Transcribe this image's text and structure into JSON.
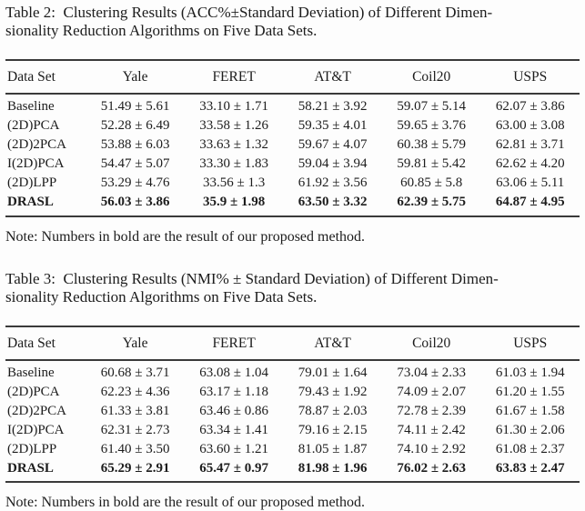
{
  "page": {
    "background": "#fdfdfd",
    "text_color": "#1c1c1c",
    "rule_color": "#3a3a3a"
  },
  "tables": [
    {
      "caption_line1": "Table 2: Clustering Results (ACC%±Standard Deviation) of Different Dimen-",
      "caption_line2": "sionality Reduction Algorithms on Five Data Sets.",
      "columns": [
        "Data Set",
        "Yale",
        "FERET",
        "AT&T",
        "Coil20",
        "USPS"
      ],
      "rows": [
        {
          "label": "Baseline",
          "bold": false,
          "values": [
            "51.49 ± 5.61",
            "33.10 ± 1.71",
            "58.21 ± 3.92",
            "59.07 ± 5.14",
            "62.07 ± 3.86"
          ]
        },
        {
          "label": "(2D)PCA",
          "bold": false,
          "values": [
            "52.28 ± 6.49",
            "33.58 ± 1.26",
            "59.35 ± 4.01",
            "59.65 ± 3.76",
            "63.00 ± 3.08"
          ]
        },
        {
          "label": "(2D)2PCA",
          "bold": false,
          "values": [
            "53.88 ± 6.03",
            "33.63 ± 1.32",
            "59.67 ± 4.07",
            "60.38 ± 5.79",
            "62.81 ± 3.71"
          ]
        },
        {
          "label": "I(2D)PCA",
          "bold": false,
          "values": [
            "54.47 ± 5.07",
            "33.30 ± 1.83",
            "59.04 ± 3.94",
            "59.81 ± 5.42",
            "62.62 ± 4.20"
          ]
        },
        {
          "label": "(2D)LPP",
          "bold": false,
          "values": [
            "53.29 ± 4.76",
            "33.56 ± 1.3",
            "61.92 ± 3.56",
            "60.85 ± 5.8",
            "63.06 ± 5.11"
          ]
        },
        {
          "label": "DRASL",
          "bold": true,
          "values": [
            "56.03 ± 3.86",
            "35.9 ± 1.98",
            "63.50 ± 3.32",
            "62.39 ± 5.75",
            "64.87 ± 4.95"
          ]
        }
      ],
      "note": "Note: Numbers in bold are the result of our proposed method."
    },
    {
      "caption_line1": "Table 3: Clustering Results (NMI% ± Standard Deviation) of Different Dimen-",
      "caption_line2": "sionality Reduction Algorithms on Five Data Sets.",
      "columns": [
        "Data Set",
        "Yale",
        "FERET",
        "AT&T",
        "Coil20",
        "USPS"
      ],
      "rows": [
        {
          "label": "Baseline",
          "bold": false,
          "values": [
            "60.68 ± 3.71",
            "63.08 ± 1.04",
            "79.01 ± 1.64",
            "73.04 ± 2.33",
            "61.03 ± 1.94"
          ]
        },
        {
          "label": "(2D)PCA",
          "bold": false,
          "values": [
            "62.23 ± 4.36",
            "63.17 ± 1.18",
            "79.43 ± 1.92",
            "74.09 ± 2.07",
            "61.20 ± 1.55"
          ]
        },
        {
          "label": "(2D)2PCA",
          "bold": false,
          "values": [
            "61.33 ± 3.81",
            "63.46 ± 0.86",
            "78.87 ± 2.03",
            "72.78 ± 2.39",
            "61.67 ± 1.58"
          ]
        },
        {
          "label": "I(2D)PCA",
          "bold": false,
          "values": [
            "62.31 ± 2.73",
            "63.34 ± 1.41",
            "79.16 ± 2.15",
            "74.11 ± 2.42",
            "61.30 ± 2.06"
          ]
        },
        {
          "label": "(2D)LPP",
          "bold": false,
          "values": [
            "61.40 ± 3.50",
            "63.60 ± 1.21",
            "81.05 ± 1.87",
            "74.10 ± 2.92",
            "61.08 ± 2.37"
          ]
        },
        {
          "label": "DRASL",
          "bold": true,
          "values": [
            "65.29 ± 2.91",
            "65.47 ± 0.97",
            "81.98 ± 1.96",
            "76.02 ± 2.63",
            "63.83 ± 2.47"
          ]
        }
      ],
      "note": "Note: Numbers in bold are the result of our proposed method."
    }
  ]
}
